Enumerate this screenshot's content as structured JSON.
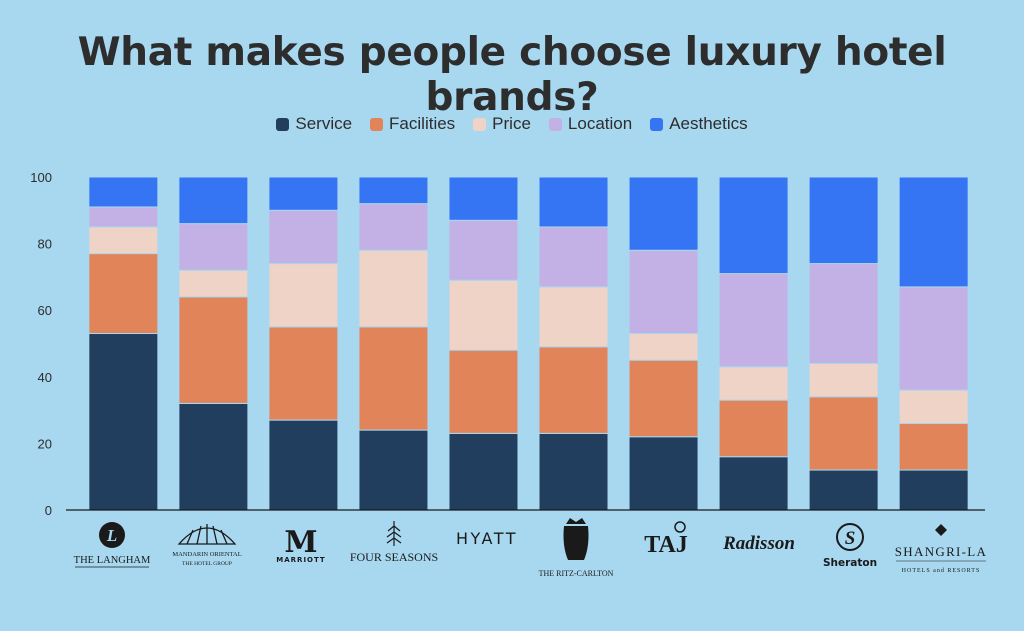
{
  "chart_data": {
    "type": "bar",
    "stacked": true,
    "title": "What makes people choose luxury hotel brands?",
    "categories": [
      "THE LANGHAM",
      "MANDARIN ORIENTAL",
      "MARRIOTT",
      "FOUR SEASONS",
      "HYATT",
      "THE RITZ-CARLTON",
      "TAJ",
      "Radisson",
      "Sheraton",
      "SHANGRI-LA"
    ],
    "series": [
      {
        "name": "Service",
        "color": "#223e5f",
        "values": [
          53,
          32,
          27,
          24,
          23,
          23,
          22,
          16,
          12,
          12
        ]
      },
      {
        "name": "Facilities",
        "color": "#e2845a",
        "values": [
          24,
          32,
          28,
          31,
          25,
          26,
          23,
          17,
          22,
          14
        ]
      },
      {
        "name": "Price",
        "color": "#efd3c7",
        "values": [
          8,
          8,
          19,
          23,
          21,
          18,
          8,
          10,
          10,
          10
        ]
      },
      {
        "name": "Location",
        "color": "#c3b0e4",
        "values": [
          6,
          14,
          16,
          14,
          18,
          18,
          25,
          28,
          30,
          31
        ]
      },
      {
        "name": "Aesthetics",
        "color": "#3574f2",
        "values": [
          9,
          14,
          10,
          8,
          13,
          15,
          22,
          29,
          26,
          33
        ]
      }
    ],
    "ylim": [
      0,
      100
    ],
    "yticks": [
      0,
      20,
      40,
      60,
      80,
      100
    ],
    "legend_position": "top-center",
    "grid": false
  },
  "logos": {
    "langham": {
      "name": "THE LANGHAM",
      "mark": "L"
    },
    "mandarin": {
      "name": "MANDARIN ORIENTAL",
      "sub": "THE HOTEL GROUP"
    },
    "marriott": {
      "name": "MARRIOTT",
      "mark": "M"
    },
    "fourseasons": {
      "name": "FOUR SEASONS"
    },
    "hyatt": {
      "name": "HYATT"
    },
    "ritz": {
      "name": "THE RITZ-CARLTON"
    },
    "taj": {
      "name": "TAJ"
    },
    "radisson": {
      "name": "Radisson"
    },
    "sheraton": {
      "name": "Sheraton",
      "mark": "S"
    },
    "shangrila": {
      "name": "SHANGRI-LA",
      "sub": "HOTELS and RESORTS"
    }
  }
}
